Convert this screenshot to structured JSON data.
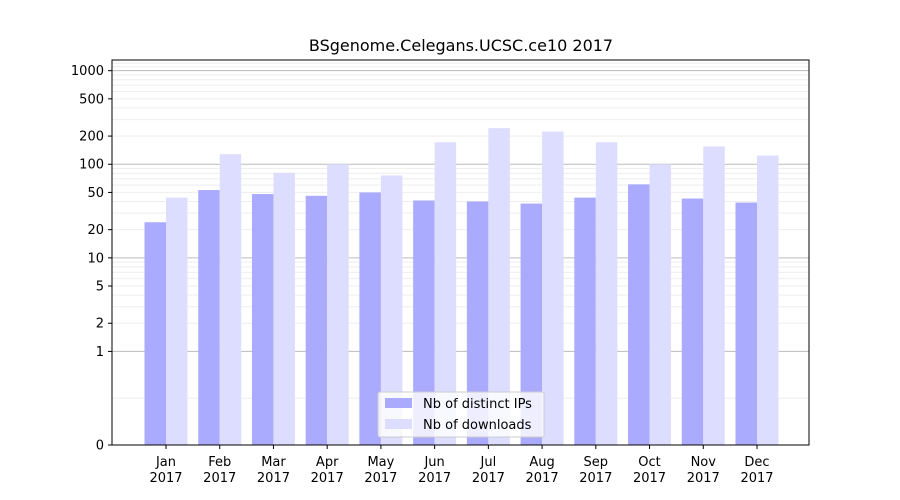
{
  "chart_data": {
    "type": "bar",
    "title": "BSgenome.Celegans.UCSC.ce10 2017",
    "xlabel": "",
    "ylabel": "",
    "y_scale": "symlog",
    "ylim": [
      0,
      1300
    ],
    "y_ticks": [
      0,
      1,
      2,
      5,
      10,
      20,
      50,
      100,
      200,
      500,
      1000
    ],
    "grid": true,
    "legend_position": "bottom-center",
    "categories": [
      [
        "Jan",
        "2017"
      ],
      [
        "Feb",
        "2017"
      ],
      [
        "Mar",
        "2017"
      ],
      [
        "Apr",
        "2017"
      ],
      [
        "May",
        "2017"
      ],
      [
        "Jun",
        "2017"
      ],
      [
        "Jul",
        "2017"
      ],
      [
        "Aug",
        "2017"
      ],
      [
        "Sep",
        "2017"
      ],
      [
        "Oct",
        "2017"
      ],
      [
        "Nov",
        "2017"
      ],
      [
        "Dec",
        "2017"
      ]
    ],
    "series": [
      {
        "name": "Nb of distinct IPs",
        "color": "#aaaaff",
        "values": [
          24,
          53,
          48,
          46,
          50,
          41,
          40,
          38,
          44,
          61,
          43,
          39
        ]
      },
      {
        "name": "Nb of downloads",
        "color": "#ddddff",
        "values": [
          44,
          128,
          81,
          100,
          76,
          172,
          243,
          224,
          172,
          100,
          155,
          124
        ]
      }
    ]
  }
}
